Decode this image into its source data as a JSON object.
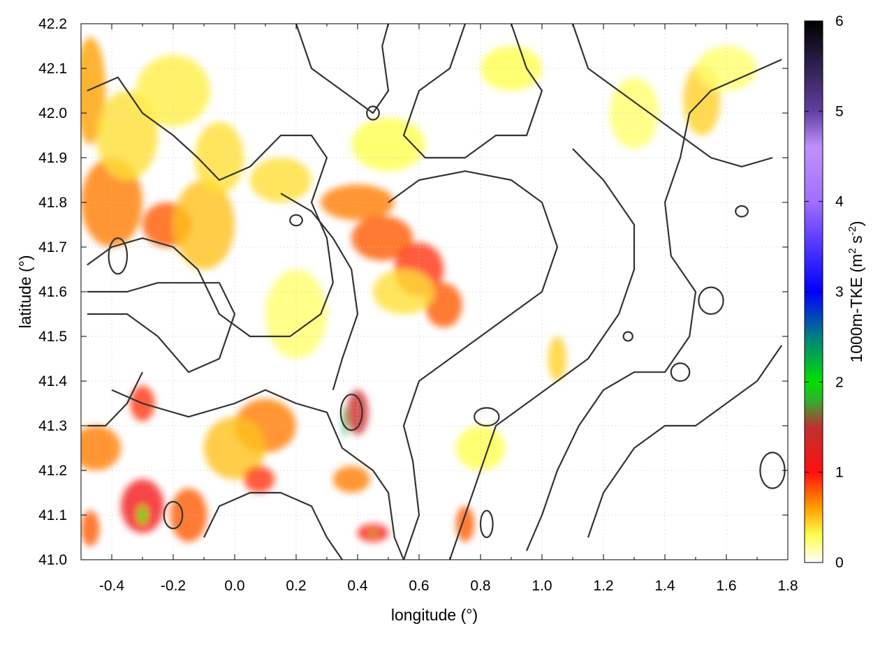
{
  "chart_data": {
    "type": "heatmap",
    "title": "",
    "xlabel": "longitude (°)",
    "ylabel": "latitude (°)",
    "xlim": [
      -0.5,
      1.8
    ],
    "ylim": [
      41.0,
      42.2
    ],
    "x_ticks": [
      -0.4,
      -0.2,
      0.0,
      0.2,
      0.4,
      0.6,
      0.8,
      1.0,
      1.2,
      1.4,
      1.6,
      1.8
    ],
    "x_tick_labels": [
      "-0.4",
      "-0.2",
      "0.0",
      "0.2",
      "0.4",
      "0.6",
      "0.8",
      "1.0",
      "1.2",
      "1.4",
      "1.6",
      "1.8"
    ],
    "y_ticks": [
      41.0,
      41.1,
      41.2,
      41.3,
      41.4,
      41.5,
      41.6,
      41.7,
      41.8,
      41.9,
      42.0,
      42.1,
      42.2
    ],
    "y_tick_labels": [
      "41.0",
      "41.1",
      "41.2",
      "41.3",
      "41.4",
      "41.5",
      "41.6",
      "41.7",
      "41.8",
      "41.9",
      "42.0",
      "42.1",
      "42.2"
    ],
    "grid": true,
    "colorbar": {
      "label": "1000m-TKE (m² s⁻²)",
      "label_main": "1000m-TKE (m",
      "label_sup1": "2",
      "label_mid": " s",
      "label_sup2": "-2",
      "label_end": ")",
      "range": [
        0,
        6
      ],
      "ticks": [
        0,
        1,
        2,
        3,
        4,
        5,
        6
      ],
      "tick_labels": [
        "0",
        "1",
        "2",
        "3",
        "4",
        "5",
        "6"
      ],
      "palette": [
        {
          "v": 0.0,
          "color": "#ffffff"
        },
        {
          "v": 0.3,
          "color": "#ffff50"
        },
        {
          "v": 0.6,
          "color": "#ffa000"
        },
        {
          "v": 1.0,
          "color": "#ff1010"
        },
        {
          "v": 1.5,
          "color": "#c03030"
        },
        {
          "v": 1.8,
          "color": "#30b030"
        },
        {
          "v": 2.0,
          "color": "#00e000"
        },
        {
          "v": 2.5,
          "color": "#008080"
        },
        {
          "v": 3.0,
          "color": "#0000ff"
        },
        {
          "v": 3.6,
          "color": "#6040ff"
        },
        {
          "v": 4.0,
          "color": "#a070ff"
        },
        {
          "v": 4.6,
          "color": "#c090ff"
        },
        {
          "v": 5.0,
          "color": "#6040a0"
        },
        {
          "v": 6.0,
          "color": "#000000"
        }
      ]
    },
    "tke_features": [
      {
        "lon": -0.47,
        "lat": 42.05,
        "tke": 0.6,
        "rx": 0.05,
        "ry": 0.12
      },
      {
        "lon": -0.4,
        "lat": 41.8,
        "tke": 0.7,
        "rx": 0.1,
        "ry": 0.1
      },
      {
        "lon": -0.22,
        "lat": 41.75,
        "tke": 0.8,
        "rx": 0.08,
        "ry": 0.05
      },
      {
        "lon": -0.1,
        "lat": 41.75,
        "tke": 0.5,
        "rx": 0.1,
        "ry": 0.1
      },
      {
        "lon": -0.35,
        "lat": 41.95,
        "tke": 0.4,
        "rx": 0.1,
        "ry": 0.1
      },
      {
        "lon": -0.2,
        "lat": 42.05,
        "tke": 0.35,
        "rx": 0.12,
        "ry": 0.08
      },
      {
        "lon": -0.05,
        "lat": 41.9,
        "tke": 0.4,
        "rx": 0.08,
        "ry": 0.08
      },
      {
        "lon": 0.15,
        "lat": 41.85,
        "tke": 0.4,
        "rx": 0.1,
        "ry": 0.05
      },
      {
        "lon": 0.4,
        "lat": 41.8,
        "tke": 0.7,
        "rx": 0.12,
        "ry": 0.04
      },
      {
        "lon": 0.48,
        "lat": 41.72,
        "tke": 0.8,
        "rx": 0.1,
        "ry": 0.05
      },
      {
        "lon": 0.6,
        "lat": 41.65,
        "tke": 0.9,
        "rx": 0.08,
        "ry": 0.06
      },
      {
        "lon": 0.68,
        "lat": 41.57,
        "tke": 0.8,
        "rx": 0.06,
        "ry": 0.05
      },
      {
        "lon": 0.55,
        "lat": 41.6,
        "tke": 0.4,
        "rx": 0.1,
        "ry": 0.05
      },
      {
        "lon": 0.5,
        "lat": 41.93,
        "tke": 0.3,
        "rx": 0.12,
        "ry": 0.06
      },
      {
        "lon": 0.9,
        "lat": 42.1,
        "tke": 0.3,
        "rx": 0.1,
        "ry": 0.05
      },
      {
        "lon": 1.52,
        "lat": 42.03,
        "tke": 0.45,
        "rx": 0.06,
        "ry": 0.08
      },
      {
        "lon": 1.3,
        "lat": 42.0,
        "tke": 0.25,
        "rx": 0.08,
        "ry": 0.08
      },
      {
        "lon": 1.6,
        "lat": 42.1,
        "tke": 0.25,
        "rx": 0.1,
        "ry": 0.05
      },
      {
        "lon": 1.05,
        "lat": 41.45,
        "tke": 0.45,
        "rx": 0.03,
        "ry": 0.05
      },
      {
        "lon": -0.3,
        "lat": 41.35,
        "tke": 0.9,
        "rx": 0.04,
        "ry": 0.04
      },
      {
        "lon": -0.45,
        "lat": 41.25,
        "tke": 0.7,
        "rx": 0.08,
        "ry": 0.05
      },
      {
        "lon": 0.1,
        "lat": 41.3,
        "tke": 0.7,
        "rx": 0.1,
        "ry": 0.06
      },
      {
        "lon": 0.0,
        "lat": 41.25,
        "tke": 0.5,
        "rx": 0.1,
        "ry": 0.07
      },
      {
        "lon": 0.08,
        "lat": 41.18,
        "tke": 0.9,
        "rx": 0.05,
        "ry": 0.03
      },
      {
        "lon": -0.3,
        "lat": 41.12,
        "tke": 1.1,
        "rx": 0.07,
        "ry": 0.06
      },
      {
        "lon": -0.15,
        "lat": 41.1,
        "tke": 0.8,
        "rx": 0.06,
        "ry": 0.06
      },
      {
        "lon": -0.47,
        "lat": 41.07,
        "tke": 0.8,
        "rx": 0.03,
        "ry": 0.04
      },
      {
        "lon": 0.4,
        "lat": 41.33,
        "tke": 1.4,
        "rx": 0.035,
        "ry": 0.05
      },
      {
        "lon": 0.38,
        "lat": 41.18,
        "tke": 0.7,
        "rx": 0.06,
        "ry": 0.03
      },
      {
        "lon": 0.45,
        "lat": 41.06,
        "tke": 1.0,
        "rx": 0.05,
        "ry": 0.02
      },
      {
        "lon": 0.75,
        "lat": 41.08,
        "tke": 0.8,
        "rx": 0.03,
        "ry": 0.04
      },
      {
        "lon": 0.2,
        "lat": 41.55,
        "tke": 0.25,
        "rx": 0.1,
        "ry": 0.1
      },
      {
        "lon": 0.8,
        "lat": 41.25,
        "tke": 0.3,
        "rx": 0.08,
        "ry": 0.05
      },
      {
        "lon": -0.3,
        "lat": 41.1,
        "tke": 2.0,
        "rx": 0.012,
        "ry": 0.02
      },
      {
        "lon": 0.36,
        "lat": 41.31,
        "tke": 2.3,
        "rx": 0.006,
        "ry": 0.035
      },
      {
        "lon": 0.45,
        "lat": 41.06,
        "tke": 1.8,
        "rx": 0.012,
        "ry": 0.005
      }
    ],
    "contours": [
      [
        [
          -0.48,
          41.66
        ],
        [
          -0.4,
          41.7
        ],
        [
          -0.3,
          41.72
        ],
        [
          -0.2,
          41.7
        ],
        [
          -0.12,
          41.65
        ],
        [
          -0.05,
          41.55
        ],
        [
          0.05,
          41.5
        ],
        [
          0.18,
          41.5
        ],
        [
          0.28,
          41.55
        ],
        [
          0.32,
          41.62
        ],
        [
          0.3,
          41.72
        ],
        [
          0.25,
          41.8
        ],
        [
          0.3,
          41.9
        ],
        [
          0.25,
          41.95
        ],
        [
          0.15,
          41.95
        ],
        [
          0.05,
          41.88
        ],
        [
          -0.05,
          41.85
        ],
        [
          -0.12,
          41.9
        ],
        [
          -0.2,
          41.95
        ],
        [
          -0.3,
          42.0
        ],
        [
          -0.38,
          42.08
        ],
        [
          -0.48,
          42.05
        ]
      ],
      [
        [
          -0.48,
          41.55
        ],
        [
          -0.35,
          41.55
        ],
        [
          -0.25,
          41.5
        ],
        [
          -0.15,
          41.42
        ],
        [
          -0.05,
          41.45
        ],
        [
          0.0,
          41.55
        ],
        [
          -0.05,
          41.62
        ],
        [
          -0.15,
          41.62
        ],
        [
          -0.25,
          41.62
        ],
        [
          -0.35,
          41.6
        ],
        [
          -0.48,
          41.6
        ]
      ],
      [
        [
          -0.4,
          41.38
        ],
        [
          -0.3,
          41.35
        ],
        [
          -0.15,
          41.32
        ],
        [
          0.0,
          41.35
        ],
        [
          0.1,
          41.38
        ],
        [
          0.2,
          41.35
        ],
        [
          0.3,
          41.33
        ],
        [
          0.35,
          41.25
        ],
        [
          0.45,
          41.2
        ],
        [
          0.5,
          41.15
        ],
        [
          0.52,
          41.05
        ],
        [
          0.55,
          41.0
        ]
      ],
      [
        [
          0.32,
          41.38
        ],
        [
          0.35,
          41.45
        ],
        [
          0.4,
          41.55
        ],
        [
          0.38,
          41.65
        ],
        [
          0.32,
          41.72
        ],
        [
          0.25,
          41.78
        ],
        [
          0.15,
          41.82
        ]
      ],
      [
        [
          0.55,
          41.0
        ],
        [
          0.6,
          41.1
        ],
        [
          0.58,
          41.22
        ],
        [
          0.55,
          41.3
        ],
        [
          0.6,
          41.4
        ],
        [
          0.7,
          41.45
        ],
        [
          0.8,
          41.5
        ],
        [
          0.9,
          41.55
        ],
        [
          1.0,
          41.6
        ],
        [
          1.05,
          41.7
        ],
        [
          1.0,
          41.8
        ],
        [
          0.9,
          41.85
        ],
        [
          0.75,
          41.87
        ],
        [
          0.6,
          41.85
        ],
        [
          0.5,
          41.8
        ]
      ],
      [
        [
          0.7,
          41.0
        ],
        [
          0.75,
          41.1
        ],
        [
          0.8,
          41.2
        ],
        [
          0.85,
          41.3
        ],
        [
          0.95,
          41.35
        ],
        [
          1.05,
          41.4
        ],
        [
          1.15,
          41.45
        ],
        [
          1.25,
          41.55
        ],
        [
          1.3,
          41.65
        ],
        [
          1.3,
          41.75
        ],
        [
          1.2,
          41.85
        ],
        [
          1.1,
          41.92
        ]
      ],
      [
        [
          0.95,
          41.02
        ],
        [
          1.0,
          41.1
        ],
        [
          1.05,
          41.2
        ],
        [
          1.12,
          41.3
        ],
        [
          1.2,
          41.38
        ],
        [
          1.3,
          41.42
        ],
        [
          1.4,
          41.42
        ],
        [
          1.48,
          41.5
        ],
        [
          1.5,
          41.6
        ],
        [
          1.42,
          41.68
        ],
        [
          1.4,
          41.8
        ],
        [
          1.45,
          41.9
        ],
        [
          1.48,
          42.0
        ],
        [
          1.55,
          42.05
        ],
        [
          1.65,
          42.08
        ],
        [
          1.78,
          42.12
        ]
      ],
      [
        [
          1.15,
          41.05
        ],
        [
          1.2,
          41.15
        ],
        [
          1.3,
          41.25
        ],
        [
          1.4,
          41.3
        ],
        [
          1.5,
          41.3
        ],
        [
          1.6,
          41.35
        ],
        [
          1.7,
          41.4
        ],
        [
          1.78,
          41.48
        ]
      ],
      [
        [
          0.75,
          42.2
        ],
        [
          0.7,
          42.1
        ],
        [
          0.6,
          42.05
        ],
        [
          0.55,
          41.95
        ],
        [
          0.62,
          41.9
        ],
        [
          0.75,
          41.9
        ],
        [
          0.85,
          41.95
        ],
        [
          0.95,
          41.95
        ],
        [
          1.0,
          42.05
        ],
        [
          0.95,
          42.1
        ],
        [
          0.9,
          42.2
        ]
      ],
      [
        [
          1.1,
          42.2
        ],
        [
          1.15,
          42.1
        ],
        [
          1.25,
          42.05
        ],
        [
          1.35,
          42.0
        ],
        [
          1.45,
          41.95
        ],
        [
          1.55,
          41.9
        ],
        [
          1.65,
          41.88
        ],
        [
          1.75,
          41.9
        ]
      ],
      [
        [
          -0.1,
          41.05
        ],
        [
          -0.05,
          41.12
        ],
        [
          0.05,
          41.15
        ],
        [
          0.15,
          41.15
        ],
        [
          0.25,
          41.12
        ],
        [
          0.3,
          41.05
        ],
        [
          0.35,
          41.0
        ]
      ],
      [
        [
          -0.3,
          41.42
        ],
        [
          -0.35,
          41.35
        ],
        [
          -0.42,
          41.3
        ],
        [
          -0.48,
          41.3
        ]
      ],
      [
        [
          0.2,
          42.2
        ],
        [
          0.25,
          42.1
        ],
        [
          0.35,
          42.05
        ],
        [
          0.45,
          42.0
        ],
        [
          0.5,
          42.05
        ],
        [
          0.48,
          42.15
        ],
        [
          0.5,
          42.2
        ]
      ]
    ],
    "small_contours": [
      {
        "lon": -0.2,
        "lat": 41.1,
        "rx": 0.03,
        "ry": 0.03
      },
      {
        "lon": 0.38,
        "lat": 41.33,
        "rx": 0.035,
        "ry": 0.04
      },
      {
        "lon": 0.82,
        "lat": 41.32,
        "rx": 0.04,
        "ry": 0.02
      },
      {
        "lon": 1.55,
        "lat": 41.58,
        "rx": 0.04,
        "ry": 0.03
      },
      {
        "lon": 0.45,
        "lat": 42.0,
        "rx": 0.02,
        "ry": 0.015
      },
      {
        "lon": 1.65,
        "lat": 41.78,
        "rx": 0.02,
        "ry": 0.012
      },
      {
        "lon": 0.2,
        "lat": 41.76,
        "rx": 0.02,
        "ry": 0.012
      },
      {
        "lon": 1.45,
        "lat": 41.42,
        "rx": 0.03,
        "ry": 0.02
      },
      {
        "lon": 0.82,
        "lat": 41.08,
        "rx": 0.02,
        "ry": 0.03
      },
      {
        "lon": 1.75,
        "lat": 41.2,
        "rx": 0.04,
        "ry": 0.04
      },
      {
        "lon": -0.38,
        "lat": 41.68,
        "rx": 0.03,
        "ry": 0.04
      },
      {
        "lon": 1.28,
        "lat": 41.5,
        "rx": 0.015,
        "ry": 0.01
      }
    ]
  }
}
